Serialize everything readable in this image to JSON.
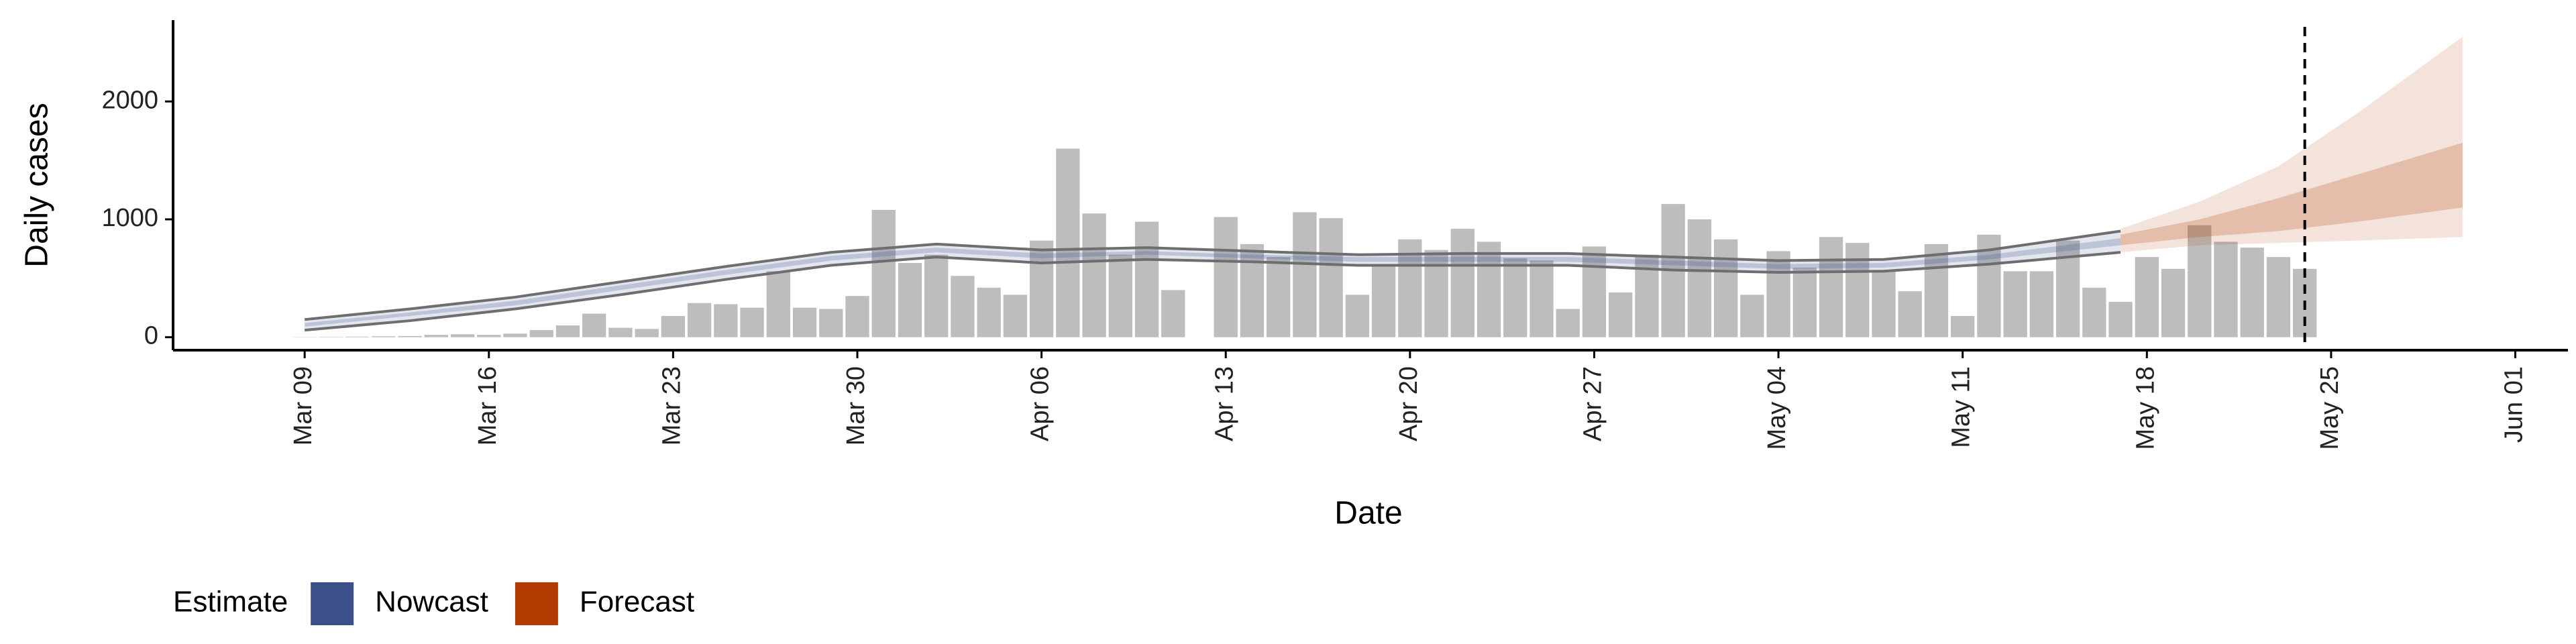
{
  "chart_data": {
    "type": "bar",
    "x_label": "Date",
    "y_label": "Daily cases",
    "x": [
      "03-09",
      "03-10",
      "03-11",
      "03-12",
      "03-13",
      "03-14",
      "03-15",
      "03-16",
      "03-17",
      "03-18",
      "03-19",
      "03-20",
      "03-21",
      "03-22",
      "03-23",
      "03-24",
      "03-25",
      "03-26",
      "03-27",
      "03-28",
      "03-29",
      "03-30",
      "03-31",
      "04-01",
      "04-02",
      "04-03",
      "04-04",
      "04-05",
      "04-06",
      "04-07",
      "04-08",
      "04-09",
      "04-10",
      "04-11",
      "04-12",
      "04-13",
      "04-14",
      "04-15",
      "04-16",
      "04-17",
      "04-18",
      "04-19",
      "04-20",
      "04-21",
      "04-22",
      "04-23",
      "04-24",
      "04-25",
      "04-26",
      "04-27",
      "04-28",
      "04-29",
      "04-30",
      "05-01",
      "05-02",
      "05-03",
      "05-04",
      "05-05",
      "05-06",
      "05-07",
      "05-08",
      "05-09",
      "05-10",
      "05-11",
      "05-12",
      "05-13",
      "05-14",
      "05-15",
      "05-16",
      "05-17",
      "05-18",
      "05-19",
      "05-20",
      "05-21",
      "05-22",
      "05-23",
      "05-24"
    ],
    "values": [
      2,
      3,
      5,
      8,
      10,
      20,
      25,
      20,
      30,
      60,
      100,
      200,
      80,
      70,
      180,
      290,
      280,
      250,
      560,
      250,
      240,
      350,
      1080,
      630,
      700,
      520,
      420,
      360,
      820,
      1600,
      1050,
      700,
      980,
      400,
      null,
      1020,
      790,
      680,
      1060,
      1010,
      360,
      620,
      830,
      740,
      920,
      810,
      670,
      650,
      240,
      770,
      380,
      700,
      1130,
      1000,
      830,
      360,
      730,
      590,
      850,
      800,
      560,
      390,
      790,
      180,
      870,
      560,
      560,
      820,
      420,
      300,
      680,
      580,
      950,
      810,
      760,
      680,
      580
    ],
    "color": "#bdbdbd",
    "legend_title": "Estimate",
    "bands": [
      {
        "name": "Nowcast",
        "color": "#3b4f8a",
        "outline": "#6e6e6e",
        "x": [
          "03-09",
          "03-13",
          "03-17",
          "03-21",
          "03-25",
          "03-29",
          "04-02",
          "04-06",
          "04-10",
          "04-14",
          "04-18",
          "04-22",
          "04-26",
          "04-30",
          "05-04",
          "05-08",
          "05-12",
          "05-17"
        ],
        "upper_90": [
          150,
          240,
          340,
          470,
          600,
          720,
          790,
          740,
          760,
          730,
          700,
          710,
          710,
          680,
          650,
          660,
          740,
          900
        ],
        "lower_90": [
          60,
          140,
          240,
          360,
          490,
          610,
          680,
          630,
          660,
          640,
          610,
          610,
          610,
          570,
          550,
          560,
          620,
          720
        ],
        "upper_50": [
          120,
          210,
          310,
          440,
          570,
          690,
          760,
          710,
          730,
          700,
          680,
          680,
          680,
          650,
          620,
          630,
          700,
          840
        ],
        "lower_50": [
          90,
          180,
          270,
          400,
          530,
          650,
          720,
          670,
          700,
          670,
          640,
          640,
          640,
          610,
          580,
          590,
          660,
          780
        ]
      },
      {
        "name": "Forecast",
        "color": "#b33a00",
        "x": [
          "05-17",
          "05-20",
          "05-23",
          "05-26",
          "05-30"
        ],
        "upper_90": [
          920,
          1150,
          1450,
          1900,
          2550
        ],
        "lower_90": [
          720,
          780,
          800,
          820,
          850
        ],
        "upper_50": [
          870,
          1000,
          1180,
          1380,
          1650
        ],
        "lower_50": [
          780,
          850,
          900,
          980,
          1100
        ]
      }
    ],
    "vline": "05-24",
    "xlim": [
      "03-04",
      "06-03"
    ],
    "xticks": [
      {
        "value": "03-09",
        "label": "Mar 09"
      },
      {
        "value": "03-16",
        "label": "Mar 16"
      },
      {
        "value": "03-23",
        "label": "Mar 23"
      },
      {
        "value": "03-30",
        "label": "Mar 30"
      },
      {
        "value": "04-06",
        "label": "Apr 06"
      },
      {
        "value": "04-13",
        "label": "Apr 13"
      },
      {
        "value": "04-20",
        "label": "Apr 20"
      },
      {
        "value": "04-27",
        "label": "Apr 27"
      },
      {
        "value": "05-04",
        "label": "May 04"
      },
      {
        "value": "05-11",
        "label": "May 11"
      },
      {
        "value": "05-18",
        "label": "May 18"
      },
      {
        "value": "05-25",
        "label": "May 25"
      },
      {
        "value": "06-01",
        "label": "Jun 01"
      }
    ],
    "ylim": [
      -110,
      2690
    ],
    "yticks": [
      0,
      1000,
      2000
    ]
  }
}
